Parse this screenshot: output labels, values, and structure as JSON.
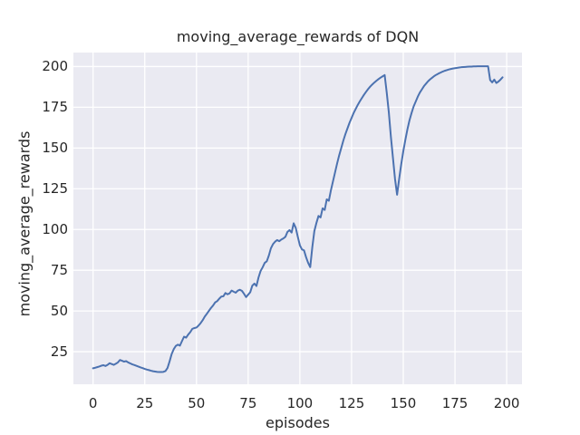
{
  "chart_data": {
    "type": "line",
    "title": "moving_average_rewards of DQN",
    "xlabel": "episodes",
    "ylabel": "moving_average_rewards",
    "x_ticks": [
      0,
      25,
      50,
      75,
      100,
      125,
      150,
      175,
      200
    ],
    "y_ticks": [
      25,
      50,
      75,
      100,
      125,
      150,
      175,
      200
    ],
    "xlim": [
      -9.5,
      207.4
    ],
    "ylim": [
      5.0,
      208.6
    ],
    "grid": true,
    "legend_position": "none",
    "line_color": "#4c72b0",
    "plot_background": "#eaeaf2",
    "grid_color": "#ffffff",
    "text_color": "#262626",
    "series": [
      {
        "name": "moving_average_rewards",
        "x": [
          0,
          1,
          2,
          3,
          4,
          5,
          6,
          7,
          8,
          9,
          10,
          11,
          12,
          13,
          14,
          15,
          16,
          17,
          18,
          19,
          20,
          21,
          22,
          23,
          24,
          25,
          26,
          27,
          28,
          29,
          30,
          31,
          32,
          33,
          34,
          35,
          36,
          37,
          38,
          39,
          40,
          41,
          42,
          43,
          44,
          45,
          46,
          47,
          48,
          49,
          50,
          51,
          52,
          53,
          54,
          55,
          56,
          57,
          58,
          59,
          60,
          61,
          62,
          63,
          64,
          65,
          66,
          67,
          68,
          69,
          70,
          71,
          72,
          73,
          74,
          75,
          76,
          77,
          78,
          79,
          80,
          81,
          82,
          83,
          84,
          85,
          86,
          87,
          88,
          89,
          90,
          91,
          92,
          93,
          94,
          95,
          96,
          97,
          98,
          99,
          100,
          101,
          102,
          103,
          104,
          105,
          106,
          107,
          108,
          109,
          110,
          111,
          112,
          113,
          114,
          115,
          116,
          117,
          118,
          119,
          120,
          121,
          122,
          123,
          124,
          125,
          126,
          127,
          128,
          129,
          130,
          131,
          132,
          133,
          134,
          135,
          136,
          137,
          138,
          139,
          140,
          141,
          142,
          143,
          144,
          145,
          146,
          147,
          148,
          149,
          150,
          151,
          152,
          153,
          154,
          155,
          156,
          157,
          158,
          159,
          160,
          161,
          162,
          163,
          164,
          165,
          166,
          167,
          168,
          169,
          170,
          171,
          172,
          173,
          174,
          175,
          176,
          177,
          178,
          179,
          180,
          181,
          182,
          183,
          184,
          185,
          186,
          187,
          188,
          189,
          190,
          191,
          192,
          193,
          194,
          195,
          196,
          197,
          198
        ],
        "y": [
          14.8,
          15.1,
          15.5,
          15.9,
          16.4,
          16.7,
          16.2,
          16.9,
          17.9,
          17.4,
          16.9,
          17.6,
          18.4,
          19.9,
          19.4,
          18.9,
          19.2,
          18.4,
          17.8,
          17.2,
          16.8,
          16.3,
          15.8,
          15.3,
          14.9,
          14.4,
          14.0,
          13.7,
          13.3,
          13.0,
          12.8,
          12.6,
          12.5,
          12.5,
          12.6,
          13.1,
          15.0,
          19.0,
          23.5,
          26.5,
          28.5,
          29.3,
          28.7,
          31.5,
          34.2,
          33.6,
          35.5,
          37.0,
          39.0,
          39.5,
          39.8,
          41.0,
          42.5,
          44.3,
          46.5,
          48.2,
          50.0,
          51.8,
          53.3,
          55.2,
          56.0,
          57.5,
          58.8,
          59.0,
          61.0,
          60.2,
          60.8,
          62.5,
          61.8,
          61.2,
          62.5,
          63.0,
          62.3,
          60.5,
          58.5,
          60.0,
          61.5,
          65.5,
          66.8,
          65.3,
          70.5,
          74.5,
          76.8,
          79.5,
          80.5,
          84.0,
          88.5,
          91.0,
          92.5,
          93.5,
          92.8,
          93.8,
          94.5,
          95.5,
          98.5,
          99.6,
          98.1,
          103.8,
          101.0,
          95.5,
          90.3,
          87.8,
          87.2,
          83.0,
          79.5,
          76.9,
          89.0,
          99.0,
          104.0,
          108.3,
          107.4,
          113.0,
          112.0,
          118.5,
          117.6,
          124.0,
          129.5,
          135.0,
          140.5,
          145.5,
          150.0,
          154.5,
          158.5,
          162.0,
          165.5,
          168.5,
          171.5,
          174.0,
          176.5,
          178.7,
          180.7,
          182.7,
          184.5,
          186.2,
          187.7,
          189.0,
          190.2,
          191.3,
          192.3,
          193.2,
          194.0,
          194.8,
          184.0,
          172.0,
          157.0,
          144.0,
          131.0,
          121.3,
          131.0,
          140.0,
          148.0,
          155.0,
          161.5,
          167.0,
          171.5,
          175.5,
          178.5,
          181.5,
          184.0,
          186.0,
          188.0,
          189.5,
          191.0,
          192.2,
          193.2,
          194.2,
          195.0,
          195.7,
          196.3,
          196.9,
          197.4,
          197.8,
          198.2,
          198.5,
          198.8,
          199.0,
          199.2,
          199.4,
          199.6,
          199.7,
          199.8,
          199.9,
          200.0,
          200.0,
          200.1,
          200.1,
          200.2,
          200.2,
          200.2,
          200.2,
          200.2,
          200.2,
          191.7,
          190.3,
          192.0,
          189.9,
          190.8,
          192.0,
          193.4
        ]
      }
    ]
  }
}
